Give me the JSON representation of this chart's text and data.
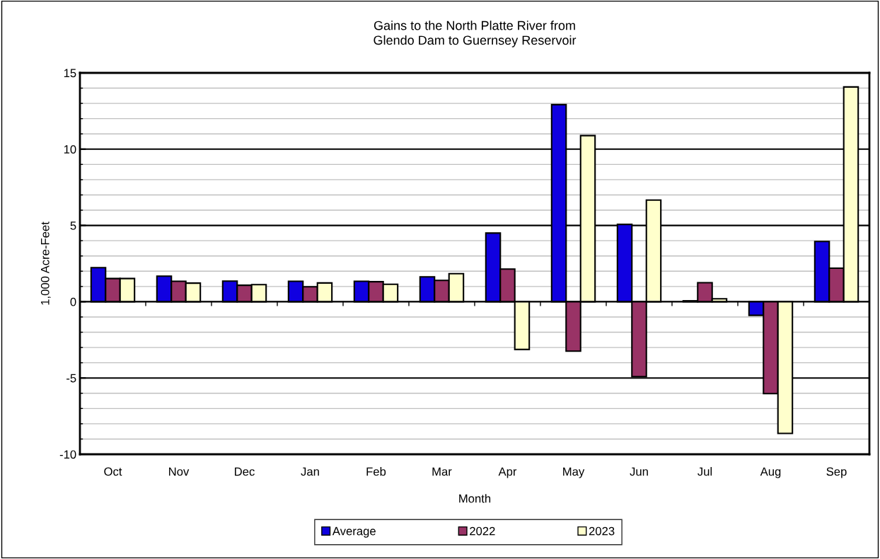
{
  "chart_data": {
    "type": "bar",
    "title": "Gains to the North Platte River from\nGlendo Dam to Guernsey Reservoir",
    "xlabel": "Month",
    "ylabel": "1,000 Acre-Feet",
    "categories": [
      "Oct",
      "Nov",
      "Dec",
      "Jan",
      "Feb",
      "Mar",
      "Apr",
      "May",
      "Jun",
      "Jul",
      "Aug",
      "Sep"
    ],
    "series": [
      {
        "name": "Average",
        "color": "#1000e0",
        "values": [
          2.23,
          1.68,
          1.35,
          1.34,
          1.34,
          1.63,
          4.5,
          12.92,
          5.07,
          0.06,
          -0.89,
          3.95
        ]
      },
      {
        "name": "2022",
        "color": "#993366",
        "values": [
          1.52,
          1.34,
          1.08,
          0.98,
          1.31,
          1.4,
          2.14,
          -3.24,
          -4.91,
          1.25,
          -6.02,
          2.2
        ]
      },
      {
        "name": "2023",
        "color": "#ffffcc",
        "values": [
          1.52,
          1.22,
          1.12,
          1.23,
          1.14,
          1.84,
          -3.13,
          10.89,
          6.66,
          0.19,
          -8.63,
          14.08
        ]
      }
    ],
    "ylim": [
      -10,
      15
    ],
    "yticks": [
      -10,
      -5,
      0,
      5,
      10,
      15
    ],
    "grid": "y",
    "legend": "bottom"
  }
}
